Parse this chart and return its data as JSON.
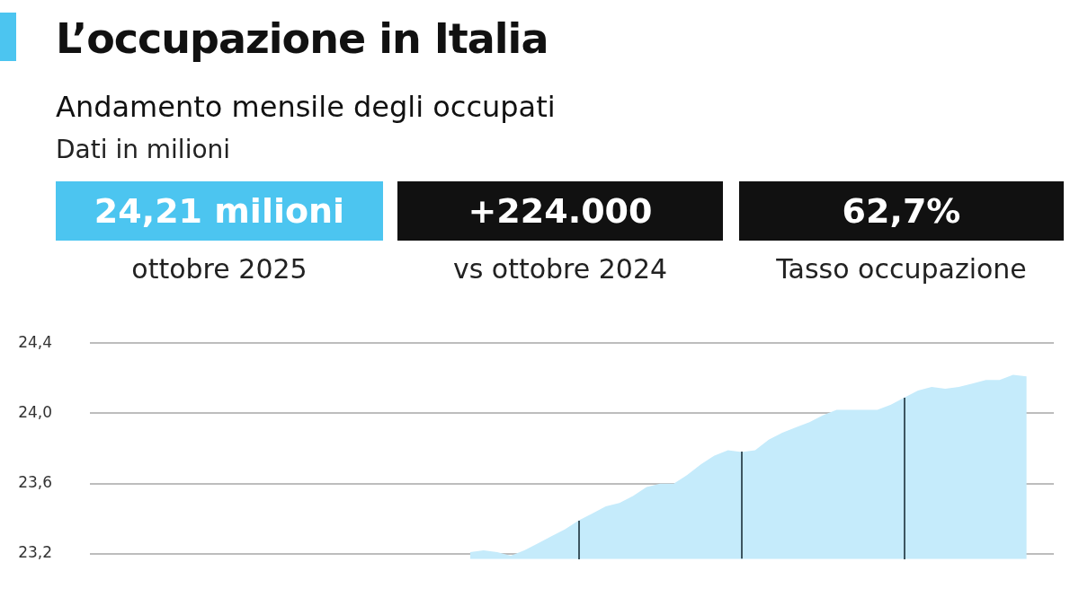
{
  "chart_data": {
    "type": "area",
    "title": "L’occupazione in Italia",
    "subtitle": "Andamento mensile degli occupati",
    "annotations": [
      "Dati in milioni",
      "24,21 milioni",
      "ottobre 2025",
      "+224.000",
      "vs ottobre 2024",
      "62,7%",
      "Tasso occupazione"
    ],
    "categories": [
      null,
      null,
      null,
      null,
      null,
      null,
      null,
      null,
      null,
      null,
      null,
      null,
      null,
      null,
      null,
      null,
      null,
      null,
      null,
      null,
      null,
      null,
      null,
      null,
      null,
      null,
      null,
      null,
      null,
      null,
      null,
      null,
      null,
      null,
      null,
      null,
      null,
      null,
      null,
      null,
      null,
      null,
      null,
      null,
      null,
      null,
      null,
      null,
      null,
      null,
      null,
      null,
      null,
      null,
      null,
      null,
      null,
      null,
      null,
      null,
      null,
      null,
      null,
      null,
      null,
      null,
      null,
      null,
      null,
      null,
      null,
      null
    ],
    "series": [
      {
        "color": "#c5ebfb",
        "values": [
          null,
          null,
          null,
          null,
          null,
          null,
          null,
          null,
          null,
          null,
          null,
          null,
          null,
          null,
          null,
          null,
          null,
          null,
          null,
          null,
          null,
          null,
          null,
          null,
          null,
          null,
          null,
          null,
          23.21,
          23.22,
          23.21,
          23.19,
          23.22,
          23.26,
          23.3,
          23.34,
          23.39,
          23.43,
          23.47,
          23.49,
          23.53,
          23.58,
          23.6,
          23.6,
          23.65,
          23.71,
          23.76,
          23.79,
          23.78,
          23.79,
          23.85,
          23.89,
          23.92,
          23.95,
          23.99,
          24.02,
          24.02,
          24.02,
          24.02,
          24.05,
          24.09,
          24.13,
          24.15,
          24.14,
          24.15,
          24.17,
          24.19,
          24.19,
          24.22,
          24.21,
          null,
          null
        ]
      }
    ],
    "ylim": [
      23.17,
      24.4
    ],
    "yticks": [
      {
        "value": 23.2,
        "label": "23,2"
      },
      {
        "value": 23.6,
        "label": "23,6"
      },
      {
        "value": 24.0,
        "label": "24,0"
      },
      {
        "value": 24.4,
        "label": "24,4"
      }
    ],
    "grid": "y",
    "tick_labels": "y",
    "legend": false
  }
}
